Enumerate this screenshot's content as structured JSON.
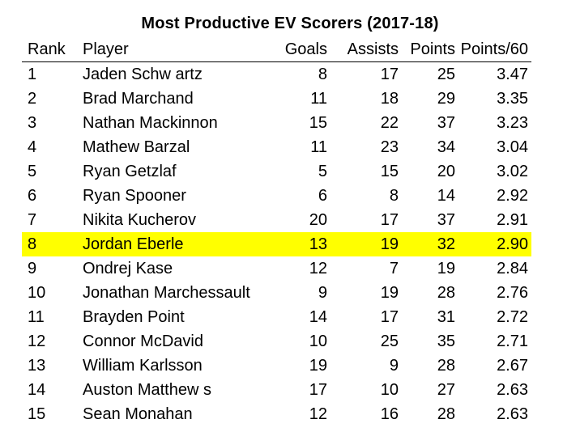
{
  "title": "Most Productive EV Scorers (2017-18)",
  "highlight_color": "#ffff00",
  "headers": {
    "rank": "Rank",
    "player": "Player",
    "goals": "Goals",
    "assists": "Assists",
    "points": "Points",
    "points60": "Points/60"
  },
  "rows": [
    {
      "rank": "1",
      "player": "Jaden Schw artz",
      "goals": "8",
      "assists": "17",
      "points": "25",
      "points60": "3.47"
    },
    {
      "rank": "2",
      "player": "Brad Marchand",
      "goals": "11",
      "assists": "18",
      "points": "29",
      "points60": "3.35"
    },
    {
      "rank": "3",
      "player": "Nathan Mackinnon",
      "goals": "15",
      "assists": "22",
      "points": "37",
      "points60": "3.23"
    },
    {
      "rank": "4",
      "player": "Mathew  Barzal",
      "goals": "11",
      "assists": "23",
      "points": "34",
      "points60": "3.04"
    },
    {
      "rank": "5",
      "player": "Ryan Getzlaf",
      "goals": "5",
      "assists": "15",
      "points": "20",
      "points60": "3.02"
    },
    {
      "rank": "6",
      "player": "Ryan Spooner",
      "goals": "6",
      "assists": "8",
      "points": "14",
      "points60": "2.92"
    },
    {
      "rank": "7",
      "player": "Nikita Kucherov",
      "goals": "20",
      "assists": "17",
      "points": "37",
      "points60": "2.91"
    },
    {
      "rank": "8",
      "player": "Jordan Eberle",
      "goals": "13",
      "assists": "19",
      "points": "32",
      "points60": "2.90",
      "highlighted": true
    },
    {
      "rank": "9",
      "player": "Ondrej Kase",
      "goals": "12",
      "assists": "7",
      "points": "19",
      "points60": "2.84"
    },
    {
      "rank": "10",
      "player": "Jonathan Marchessault",
      "goals": "9",
      "assists": "19",
      "points": "28",
      "points60": "2.76"
    },
    {
      "rank": "11",
      "player": "Brayden Point",
      "goals": "14",
      "assists": "17",
      "points": "31",
      "points60": "2.72"
    },
    {
      "rank": "12",
      "player": "Connor McDavid",
      "goals": "10",
      "assists": "25",
      "points": "35",
      "points60": "2.71"
    },
    {
      "rank": "13",
      "player": "William Karlsson",
      "goals": "19",
      "assists": "9",
      "points": "28",
      "points60": "2.67"
    },
    {
      "rank": "14",
      "player": "Auston Matthew s",
      "goals": "17",
      "assists": "10",
      "points": "27",
      "points60": "2.63"
    },
    {
      "rank": "15",
      "player": "Sean Monahan",
      "goals": "12",
      "assists": "16",
      "points": "28",
      "points60": "2.63"
    }
  ]
}
